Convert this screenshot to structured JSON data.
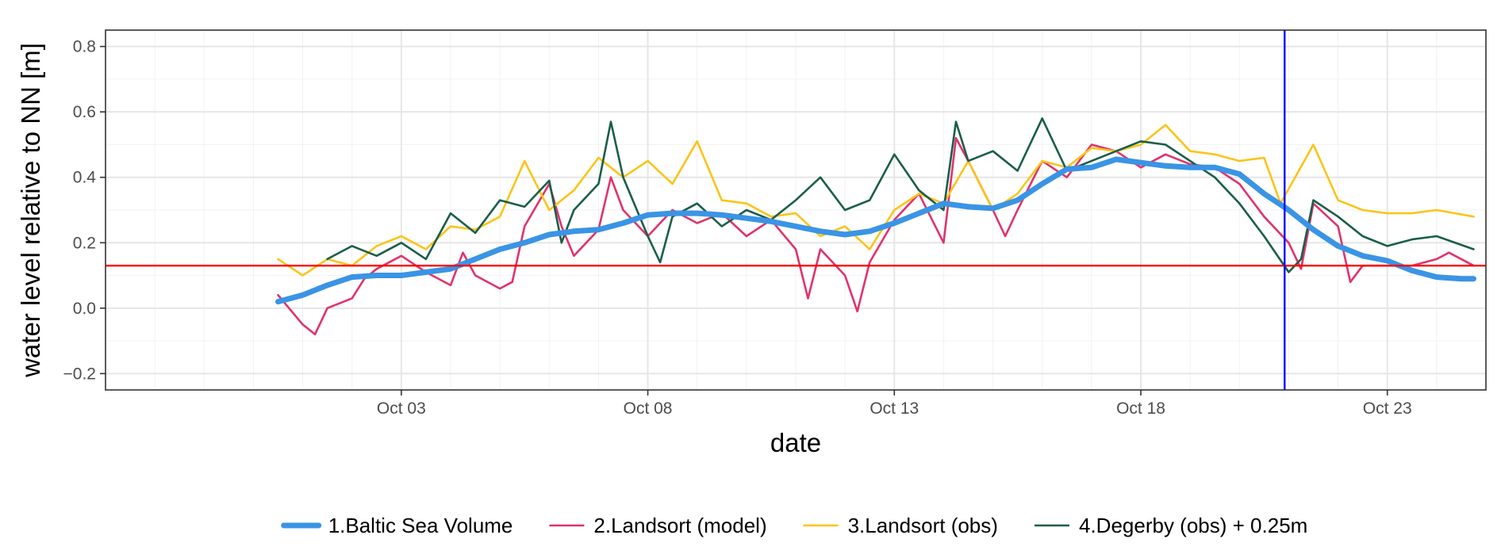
{
  "chart_data": {
    "type": "line",
    "xlabel": "date",
    "ylabel": "water level relative to NN [m]",
    "x_axis": {
      "type": "date",
      "range": [
        "2024-09-27",
        "2024-10-25"
      ],
      "ticks": [
        {
          "date": "2024-10-03",
          "label": "Oct 03"
        },
        {
          "date": "2024-10-08",
          "label": "Oct 08"
        },
        {
          "date": "2024-10-13",
          "label": "Oct 13"
        },
        {
          "date": "2024-10-18",
          "label": "Oct 18"
        },
        {
          "date": "2024-10-23",
          "label": "Oct 23"
        }
      ]
    },
    "y_axis": {
      "range": [
        -0.25,
        0.85
      ],
      "ticks": [
        -0.2,
        0.0,
        0.2,
        0.4,
        0.6,
        0.8
      ],
      "tick_labels": [
        "−0.2",
        "0.0",
        "0.2",
        "0.4",
        "0.6",
        "0.8"
      ]
    },
    "grid": true,
    "legend_position": "bottom",
    "reference_lines": [
      {
        "orientation": "horizontal",
        "value": 0.13,
        "color": "#ff0000"
      },
      {
        "orientation": "vertical",
        "value": "2024-10-20T22:00",
        "color": "#0000ff"
      }
    ],
    "series": [
      {
        "name": "1.Baltic Sea Volume",
        "color": "#3a94e5",
        "points": [
          [
            "2024-09-30T12:00",
            0.02
          ],
          [
            "2024-10-01T00:00",
            0.04
          ],
          [
            "2024-10-01T12:00",
            0.07
          ],
          [
            "2024-10-02T00:00",
            0.095
          ],
          [
            "2024-10-02T12:00",
            0.1
          ],
          [
            "2024-10-03T00:00",
            0.1
          ],
          [
            "2024-10-03T12:00",
            0.11
          ],
          [
            "2024-10-04T00:00",
            0.12
          ],
          [
            "2024-10-04T12:00",
            0.15
          ],
          [
            "2024-10-05T00:00",
            0.18
          ],
          [
            "2024-10-05T12:00",
            0.2
          ],
          [
            "2024-10-06T00:00",
            0.225
          ],
          [
            "2024-10-06T12:00",
            0.235
          ],
          [
            "2024-10-07T00:00",
            0.24
          ],
          [
            "2024-10-07T12:00",
            0.26
          ],
          [
            "2024-10-08T00:00",
            0.285
          ],
          [
            "2024-10-08T12:00",
            0.29
          ],
          [
            "2024-10-09T00:00",
            0.29
          ],
          [
            "2024-10-09T12:00",
            0.285
          ],
          [
            "2024-10-10T00:00",
            0.275
          ],
          [
            "2024-10-10T12:00",
            0.265
          ],
          [
            "2024-10-11T00:00",
            0.25
          ],
          [
            "2024-10-11T12:00",
            0.235
          ],
          [
            "2024-10-12T00:00",
            0.225
          ],
          [
            "2024-10-12T12:00",
            0.235
          ],
          [
            "2024-10-13T00:00",
            0.26
          ],
          [
            "2024-10-13T12:00",
            0.29
          ],
          [
            "2024-10-14T00:00",
            0.32
          ],
          [
            "2024-10-14T12:00",
            0.31
          ],
          [
            "2024-10-15T00:00",
            0.305
          ],
          [
            "2024-10-15T12:00",
            0.33
          ],
          [
            "2024-10-16T00:00",
            0.38
          ],
          [
            "2024-10-16T12:00",
            0.425
          ],
          [
            "2024-10-17T00:00",
            0.43
          ],
          [
            "2024-10-17T12:00",
            0.455
          ],
          [
            "2024-10-18T00:00",
            0.445
          ],
          [
            "2024-10-18T12:00",
            0.435
          ],
          [
            "2024-10-19T00:00",
            0.43
          ],
          [
            "2024-10-19T12:00",
            0.43
          ],
          [
            "2024-10-20T00:00",
            0.41
          ],
          [
            "2024-10-20T12:00",
            0.35
          ],
          [
            "2024-10-21T00:00",
            0.3
          ],
          [
            "2024-10-21T12:00",
            0.24
          ],
          [
            "2024-10-22T00:00",
            0.19
          ],
          [
            "2024-10-22T12:00",
            0.16
          ],
          [
            "2024-10-23T00:00",
            0.145
          ],
          [
            "2024-10-23T12:00",
            0.115
          ],
          [
            "2024-10-24T00:00",
            0.095
          ],
          [
            "2024-10-24T12:00",
            0.09
          ],
          [
            "2024-10-24T18:00",
            0.09
          ]
        ]
      },
      {
        "name": "2.Landsort (model)",
        "color": "#e0336b",
        "points": [
          [
            "2024-09-30T12:00",
            0.04
          ],
          [
            "2024-10-01T00:00",
            -0.05
          ],
          [
            "2024-10-01T06:00",
            -0.08
          ],
          [
            "2024-10-01T12:00",
            0.0
          ],
          [
            "2024-10-02T00:00",
            0.03
          ],
          [
            "2024-10-02T06:00",
            0.09
          ],
          [
            "2024-10-02T12:00",
            0.12
          ],
          [
            "2024-10-03T00:00",
            0.16
          ],
          [
            "2024-10-03T12:00",
            0.11
          ],
          [
            "2024-10-04T00:00",
            0.07
          ],
          [
            "2024-10-04T06:00",
            0.17
          ],
          [
            "2024-10-04T12:00",
            0.1
          ],
          [
            "2024-10-05T00:00",
            0.06
          ],
          [
            "2024-10-05T06:00",
            0.08
          ],
          [
            "2024-10-05T12:00",
            0.25
          ],
          [
            "2024-10-06T00:00",
            0.38
          ],
          [
            "2024-10-06T06:00",
            0.25
          ],
          [
            "2024-10-06T12:00",
            0.16
          ],
          [
            "2024-10-07T00:00",
            0.24
          ],
          [
            "2024-10-07T06:00",
            0.4
          ],
          [
            "2024-10-07T12:00",
            0.3
          ],
          [
            "2024-10-08T00:00",
            0.22
          ],
          [
            "2024-10-08T06:00",
            0.26
          ],
          [
            "2024-10-08T12:00",
            0.3
          ],
          [
            "2024-10-09T00:00",
            0.26
          ],
          [
            "2024-10-09T12:00",
            0.29
          ],
          [
            "2024-10-10T00:00",
            0.22
          ],
          [
            "2024-10-10T12:00",
            0.27
          ],
          [
            "2024-10-11T00:00",
            0.18
          ],
          [
            "2024-10-11T06:00",
            0.03
          ],
          [
            "2024-10-11T12:00",
            0.18
          ],
          [
            "2024-10-12T00:00",
            0.1
          ],
          [
            "2024-10-12T06:00",
            -0.01
          ],
          [
            "2024-10-12T12:00",
            0.14
          ],
          [
            "2024-10-13T00:00",
            0.27
          ],
          [
            "2024-10-13T12:00",
            0.35
          ],
          [
            "2024-10-14T00:00",
            0.2
          ],
          [
            "2024-10-14T06:00",
            0.52
          ],
          [
            "2024-10-14T12:00",
            0.45
          ],
          [
            "2024-10-15T00:00",
            0.3
          ],
          [
            "2024-10-15T06:00",
            0.22
          ],
          [
            "2024-10-15T12:00",
            0.3
          ],
          [
            "2024-10-16T00:00",
            0.45
          ],
          [
            "2024-10-16T12:00",
            0.4
          ],
          [
            "2024-10-17T00:00",
            0.5
          ],
          [
            "2024-10-17T12:00",
            0.48
          ],
          [
            "2024-10-18T00:00",
            0.43
          ],
          [
            "2024-10-18T12:00",
            0.47
          ],
          [
            "2024-10-19T00:00",
            0.44
          ],
          [
            "2024-10-19T12:00",
            0.43
          ],
          [
            "2024-10-20T00:00",
            0.38
          ],
          [
            "2024-10-20T12:00",
            0.28
          ],
          [
            "2024-10-21T00:00",
            0.2
          ],
          [
            "2024-10-21T06:00",
            0.12
          ],
          [
            "2024-10-21T12:00",
            0.32
          ],
          [
            "2024-10-22T00:00",
            0.25
          ],
          [
            "2024-10-22T06:00",
            0.08
          ],
          [
            "2024-10-22T12:00",
            0.13
          ],
          [
            "2024-10-23T00:00",
            0.13
          ],
          [
            "2024-10-23T12:00",
            0.13
          ],
          [
            "2024-10-24T00:00",
            0.15
          ],
          [
            "2024-10-24T06:00",
            0.17
          ],
          [
            "2024-10-24T18:00",
            0.13
          ]
        ]
      },
      {
        "name": "3.Landsort (obs)",
        "color": "#fcc419",
        "points": [
          [
            "2024-09-30T12:00",
            0.15
          ],
          [
            "2024-10-01T00:00",
            0.1
          ],
          [
            "2024-10-01T12:00",
            0.15
          ],
          [
            "2024-10-02T00:00",
            0.13
          ],
          [
            "2024-10-02T12:00",
            0.19
          ],
          [
            "2024-10-03T00:00",
            0.22
          ],
          [
            "2024-10-03T12:00",
            0.18
          ],
          [
            "2024-10-04T00:00",
            0.25
          ],
          [
            "2024-10-04T12:00",
            0.24
          ],
          [
            "2024-10-05T00:00",
            0.28
          ],
          [
            "2024-10-05T12:00",
            0.45
          ],
          [
            "2024-10-06T00:00",
            0.3
          ],
          [
            "2024-10-06T12:00",
            0.36
          ],
          [
            "2024-10-07T00:00",
            0.46
          ],
          [
            "2024-10-07T12:00",
            0.4
          ],
          [
            "2024-10-08T00:00",
            0.45
          ],
          [
            "2024-10-08T12:00",
            0.38
          ],
          [
            "2024-10-09T00:00",
            0.51
          ],
          [
            "2024-10-09T12:00",
            0.33
          ],
          [
            "2024-10-10T00:00",
            0.32
          ],
          [
            "2024-10-10T12:00",
            0.28
          ],
          [
            "2024-10-11T00:00",
            0.29
          ],
          [
            "2024-10-11T12:00",
            0.22
          ],
          [
            "2024-10-12T00:00",
            0.25
          ],
          [
            "2024-10-12T12:00",
            0.18
          ],
          [
            "2024-10-13T00:00",
            0.3
          ],
          [
            "2024-10-13T12:00",
            0.35
          ],
          [
            "2024-10-14T00:00",
            0.32
          ],
          [
            "2024-10-14T12:00",
            0.45
          ],
          [
            "2024-10-15T00:00",
            0.3
          ],
          [
            "2024-10-15T12:00",
            0.35
          ],
          [
            "2024-10-16T00:00",
            0.45
          ],
          [
            "2024-10-16T12:00",
            0.43
          ],
          [
            "2024-10-17T00:00",
            0.49
          ],
          [
            "2024-10-17T12:00",
            0.48
          ],
          [
            "2024-10-18T00:00",
            0.5
          ],
          [
            "2024-10-18T12:00",
            0.56
          ],
          [
            "2024-10-19T00:00",
            0.48
          ],
          [
            "2024-10-19T12:00",
            0.47
          ],
          [
            "2024-10-20T00:00",
            0.45
          ],
          [
            "2024-10-20T12:00",
            0.46
          ],
          [
            "2024-10-20T20:00",
            0.32
          ],
          [
            "2024-10-21T12:00",
            0.5
          ],
          [
            "2024-10-22T00:00",
            0.33
          ],
          [
            "2024-10-22T12:00",
            0.3
          ],
          [
            "2024-10-23T00:00",
            0.29
          ],
          [
            "2024-10-23T12:00",
            0.29
          ],
          [
            "2024-10-24T00:00",
            0.3
          ],
          [
            "2024-10-24T18:00",
            0.28
          ]
        ]
      },
      {
        "name": "4.Degerby (obs) + 0.25m",
        "color": "#1a5e4a",
        "points": [
          [
            "2024-10-01T12:00",
            0.15
          ],
          [
            "2024-10-02T00:00",
            0.19
          ],
          [
            "2024-10-02T12:00",
            0.16
          ],
          [
            "2024-10-03T00:00",
            0.2
          ],
          [
            "2024-10-03T12:00",
            0.15
          ],
          [
            "2024-10-04T00:00",
            0.29
          ],
          [
            "2024-10-04T12:00",
            0.23
          ],
          [
            "2024-10-05T00:00",
            0.33
          ],
          [
            "2024-10-05T12:00",
            0.31
          ],
          [
            "2024-10-06T00:00",
            0.39
          ],
          [
            "2024-10-06T06:00",
            0.2
          ],
          [
            "2024-10-06T12:00",
            0.3
          ],
          [
            "2024-10-07T00:00",
            0.38
          ],
          [
            "2024-10-07T06:00",
            0.57
          ],
          [
            "2024-10-07T12:00",
            0.4
          ],
          [
            "2024-10-08T00:00",
            0.22
          ],
          [
            "2024-10-08T06:00",
            0.14
          ],
          [
            "2024-10-08T12:00",
            0.28
          ],
          [
            "2024-10-09T00:00",
            0.32
          ],
          [
            "2024-10-09T12:00",
            0.25
          ],
          [
            "2024-10-10T00:00",
            0.3
          ],
          [
            "2024-10-10T12:00",
            0.27
          ],
          [
            "2024-10-11T00:00",
            0.33
          ],
          [
            "2024-10-11T12:00",
            0.4
          ],
          [
            "2024-10-12T00:00",
            0.3
          ],
          [
            "2024-10-12T12:00",
            0.33
          ],
          [
            "2024-10-13T00:00",
            0.47
          ],
          [
            "2024-10-13T12:00",
            0.36
          ],
          [
            "2024-10-14T00:00",
            0.3
          ],
          [
            "2024-10-14T06:00",
            0.57
          ],
          [
            "2024-10-14T12:00",
            0.45
          ],
          [
            "2024-10-15T00:00",
            0.48
          ],
          [
            "2024-10-15T12:00",
            0.42
          ],
          [
            "2024-10-16T00:00",
            0.58
          ],
          [
            "2024-10-16T12:00",
            0.42
          ],
          [
            "2024-10-17T00:00",
            0.45
          ],
          [
            "2024-10-17T12:00",
            0.48
          ],
          [
            "2024-10-18T00:00",
            0.51
          ],
          [
            "2024-10-18T12:00",
            0.5
          ],
          [
            "2024-10-19T00:00",
            0.45
          ],
          [
            "2024-10-19T12:00",
            0.4
          ],
          [
            "2024-10-20T00:00",
            0.32
          ],
          [
            "2024-10-20T12:00",
            0.22
          ],
          [
            "2024-10-21T00:00",
            0.11
          ],
          [
            "2024-10-21T06:00",
            0.15
          ],
          [
            "2024-10-21T12:00",
            0.33
          ],
          [
            "2024-10-22T00:00",
            0.28
          ],
          [
            "2024-10-22T12:00",
            0.22
          ],
          [
            "2024-10-23T00:00",
            0.19
          ],
          [
            "2024-10-23T12:00",
            0.21
          ],
          [
            "2024-10-24T00:00",
            0.22
          ],
          [
            "2024-10-24T18:00",
            0.18
          ]
        ]
      }
    ]
  }
}
